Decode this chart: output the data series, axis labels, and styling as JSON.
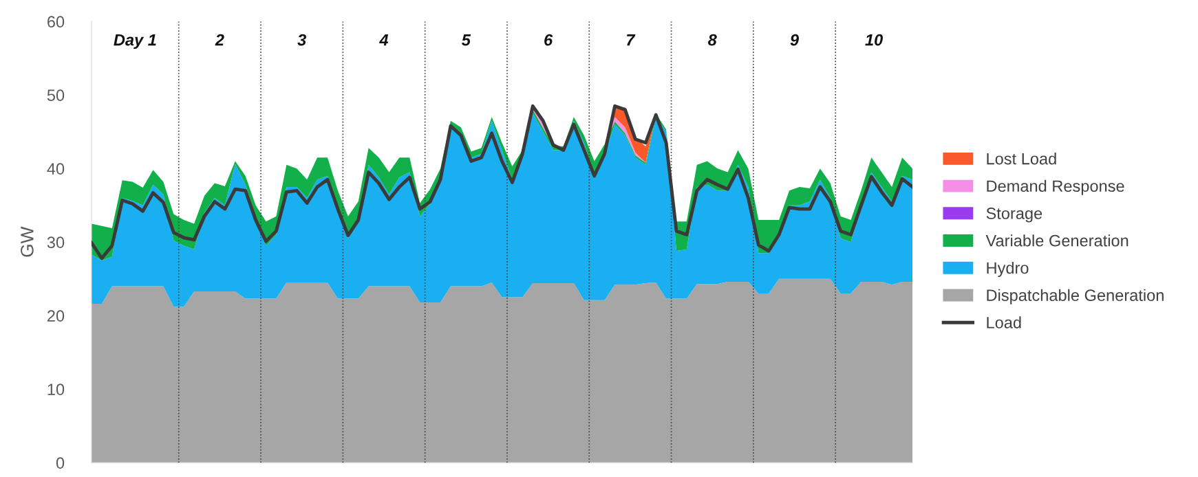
{
  "chart_data": {
    "type": "area",
    "stacked": true,
    "ylabel": "GW",
    "ylim": [
      0,
      60
    ],
    "yticks": [
      0,
      10,
      20,
      30,
      40,
      50,
      60
    ],
    "grid": false,
    "legend": "right",
    "tick_labels": "y",
    "categories": [
      null,
      null,
      null,
      null,
      null,
      null,
      null,
      null,
      null,
      null,
      null,
      null,
      null,
      null,
      null,
      null,
      null,
      null,
      null,
      null,
      null,
      null,
      null,
      null,
      null,
      null,
      null,
      null,
      null,
      null,
      null,
      null,
      null,
      null,
      null,
      null,
      null,
      null,
      null,
      null,
      null,
      null,
      null,
      null,
      null,
      null,
      null,
      null,
      null,
      null,
      null,
      null,
      null,
      null,
      null,
      null,
      null,
      null,
      null,
      null,
      null,
      null,
      null,
      null,
      null,
      null,
      null,
      null,
      null,
      null,
      null,
      null,
      null,
      null,
      null,
      null,
      null,
      null,
      null,
      null,
      null
    ],
    "series": [
      {
        "name": "Dispatchable Generation",
        "color": "#a6a6a6",
        "values": [
          21.6,
          21.6,
          24.0,
          24.0,
          24.0,
          24.0,
          24.0,
          24.0,
          21.2,
          21.2,
          23.3,
          23.3,
          23.3,
          23.3,
          23.3,
          22.3,
          22.3,
          22.3,
          22.3,
          24.5,
          24.5,
          24.5,
          24.5,
          24.5,
          22.3,
          22.3,
          22.3,
          24.0,
          24.0,
          24.0,
          24.0,
          24.0,
          21.8,
          21.8,
          21.8,
          24.0,
          24.0,
          24.0,
          24.0,
          24.5,
          22.5,
          22.5,
          22.5,
          24.4,
          24.4,
          24.4,
          24.4,
          24.4,
          22.1,
          22.1,
          22.1,
          24.2,
          24.2,
          24.2,
          24.4,
          24.5,
          22.3,
          22.3,
          22.3,
          24.3,
          24.3,
          24.3,
          24.6,
          24.6,
          24.6,
          23.0,
          23.0,
          25.0,
          25.0,
          25.0,
          25.0,
          25.0,
          25.0,
          23.0,
          23.0,
          24.6,
          24.6,
          24.6,
          24.2,
          24.6,
          24.6
        ]
      },
      {
        "name": "Hydro",
        "color": "#1aaff0",
        "values": [
          6.7,
          5.9,
          4.0,
          12.0,
          11.6,
          11.0,
          13.8,
          12.5,
          9.0,
          8.3,
          5.7,
          10.7,
          12.7,
          11.7,
          17.3,
          15.5,
          11.2,
          7.2,
          8.7,
          13.0,
          13.0,
          11.5,
          14.0,
          14.5,
          12.2,
          8.2,
          10.7,
          16.5,
          14.8,
          12.5,
          14.8,
          15.5,
          11.7,
          13.4,
          16.7,
          21.6,
          20.5,
          17.5,
          18.0,
          22.0,
          20.0,
          16.0,
          19.0,
          23.1,
          20.6,
          18.1,
          18.1,
          22.1,
          21.4,
          16.9,
          19.9,
          21.8,
          20.3,
          17.3,
          16.1,
          22.5,
          22.7,
          6.5,
          6.7,
          13.2,
          13.5,
          12.7,
          12.4,
          15.9,
          12.9,
          5.5,
          5.5,
          5.5,
          10.0,
          10.0,
          10.5,
          13.5,
          11.0,
          7.5,
          7.0,
          10.4,
          14.9,
          12.9,
          11.3,
          14.4,
          13.9
        ]
      },
      {
        "name": "Variable Generation",
        "color": "#12b04a",
        "values": [
          4.2,
          4.7,
          3.9,
          2.4,
          2.6,
          2.4,
          2.0,
          1.7,
          3.6,
          3.5,
          3.5,
          2.3,
          2.0,
          2.6,
          0.4,
          1.2,
          1.5,
          3.3,
          2.5,
          3.0,
          2.5,
          2.5,
          3.0,
          2.5,
          2.5,
          3.0,
          2.5,
          2.3,
          2.7,
          3.0,
          2.7,
          2.0,
          1.8,
          2.0,
          1.5,
          0.9,
          1.1,
          0.8,
          0.8,
          0.5,
          1.0,
          1.8,
          1.0,
          0.5,
          0.5,
          0.5,
          0.5,
          0.5,
          1.0,
          2.0,
          1.3,
          0.4,
          0.3,
          0.3,
          0.3,
          0.5,
          0.3,
          4.0,
          3.8,
          3.0,
          3.2,
          3.0,
          2.5,
          2.0,
          2.5,
          4.5,
          4.5,
          2.5,
          2.0,
          2.5,
          1.8,
          1.5,
          2.0,
          3.0,
          3.0,
          2.0,
          2.0,
          2.0,
          2.0,
          2.5,
          1.5
        ]
      },
      {
        "name": "Storage",
        "color": "#9a3bf0",
        "values": [
          null,
          null,
          null,
          null,
          null,
          null,
          null,
          null,
          null,
          null,
          null,
          null,
          null,
          null,
          null,
          null,
          null,
          null,
          null,
          null,
          null,
          null,
          null,
          null,
          null,
          null,
          null,
          null,
          null,
          null,
          null,
          null,
          null,
          null,
          null,
          null,
          null,
          null,
          null,
          null,
          null,
          null,
          null,
          null,
          null,
          null,
          null,
          null,
          null,
          null,
          null,
          null,
          null,
          null,
          null,
          null,
          null,
          null,
          null,
          null,
          null,
          null,
          null,
          null,
          null,
          null,
          null,
          null,
          null,
          null,
          null,
          null,
          null,
          null,
          null,
          null,
          null,
          null,
          null,
          null,
          null
        ]
      },
      {
        "name": "Demand Response",
        "color": "#f58ee6",
        "values": [
          0,
          0,
          0,
          0,
          0,
          0,
          0,
          0,
          0,
          0,
          0,
          0,
          0,
          0,
          0,
          0,
          0,
          0,
          0,
          0,
          0,
          0,
          0,
          0,
          0,
          0,
          0,
          0,
          0,
          0,
          0,
          0,
          0,
          0,
          0,
          0,
          0,
          0,
          0,
          0,
          0,
          0,
          0,
          0.4,
          0.8,
          0.2,
          0,
          0,
          0,
          0,
          0,
          0.6,
          0.8,
          0.4,
          0,
          0,
          0,
          0,
          0,
          0,
          0,
          0,
          0,
          0,
          0,
          0,
          0,
          0,
          0,
          0,
          0,
          0,
          0,
          0,
          0,
          0,
          0,
          0,
          0,
          0,
          0
        ]
      },
      {
        "name": "Lost Load",
        "color": "#fa5a2a",
        "values": [
          0,
          0,
          0,
          0,
          0,
          0,
          0,
          0,
          0,
          0,
          0,
          0,
          0,
          0,
          0,
          0,
          0,
          0,
          0,
          0,
          0,
          0,
          0,
          0,
          0,
          0,
          0,
          0,
          0,
          0,
          0,
          0,
          0,
          0,
          0,
          0,
          0,
          0,
          0,
          0,
          0,
          0,
          0,
          0.3,
          0.2,
          0,
          0,
          0,
          0,
          0,
          0,
          1.4,
          2.7,
          2.0,
          2.2,
          0,
          0,
          0,
          0,
          0,
          0,
          0,
          0,
          0,
          0,
          0,
          0,
          0,
          0,
          0,
          0,
          0,
          0,
          0,
          0,
          0,
          0,
          0,
          0,
          0,
          0
        ]
      },
      {
        "name": "Load",
        "type": "line",
        "color": "#3a3a3a",
        "values": [
          29.9,
          27.8,
          29.5,
          35.7,
          35.2,
          34.2,
          36.7,
          35.4,
          31.3,
          30.6,
          30.3,
          33.5,
          35.5,
          34.5,
          37.2,
          37.0,
          33.0,
          30.1,
          31.5,
          36.8,
          37.0,
          35.3,
          37.5,
          38.5,
          34.5,
          30.9,
          33.0,
          39.5,
          38.0,
          35.8,
          37.5,
          38.8,
          34.5,
          35.5,
          38.5,
          45.8,
          44.5,
          41.0,
          41.5,
          44.8,
          41.0,
          38.1,
          42.0,
          48.5,
          46.5,
          43.2,
          42.5,
          46.0,
          42.5,
          39.0,
          42.0,
          48.5,
          48.0,
          44.0,
          43.5,
          47.3,
          43.5,
          31.5,
          31.0,
          37.0,
          38.5,
          37.8,
          37.2,
          39.9,
          36.0,
          29.6,
          28.8,
          31.0,
          34.7,
          34.5,
          34.5,
          37.5,
          35.5,
          31.5,
          31.0,
          35.0,
          38.9,
          36.8,
          35.0,
          38.6,
          37.5
        ]
      }
    ],
    "annotations": [
      "Day 1",
      "2",
      "3",
      "4",
      "5",
      "6",
      "7",
      "8",
      "9",
      "10"
    ]
  }
}
